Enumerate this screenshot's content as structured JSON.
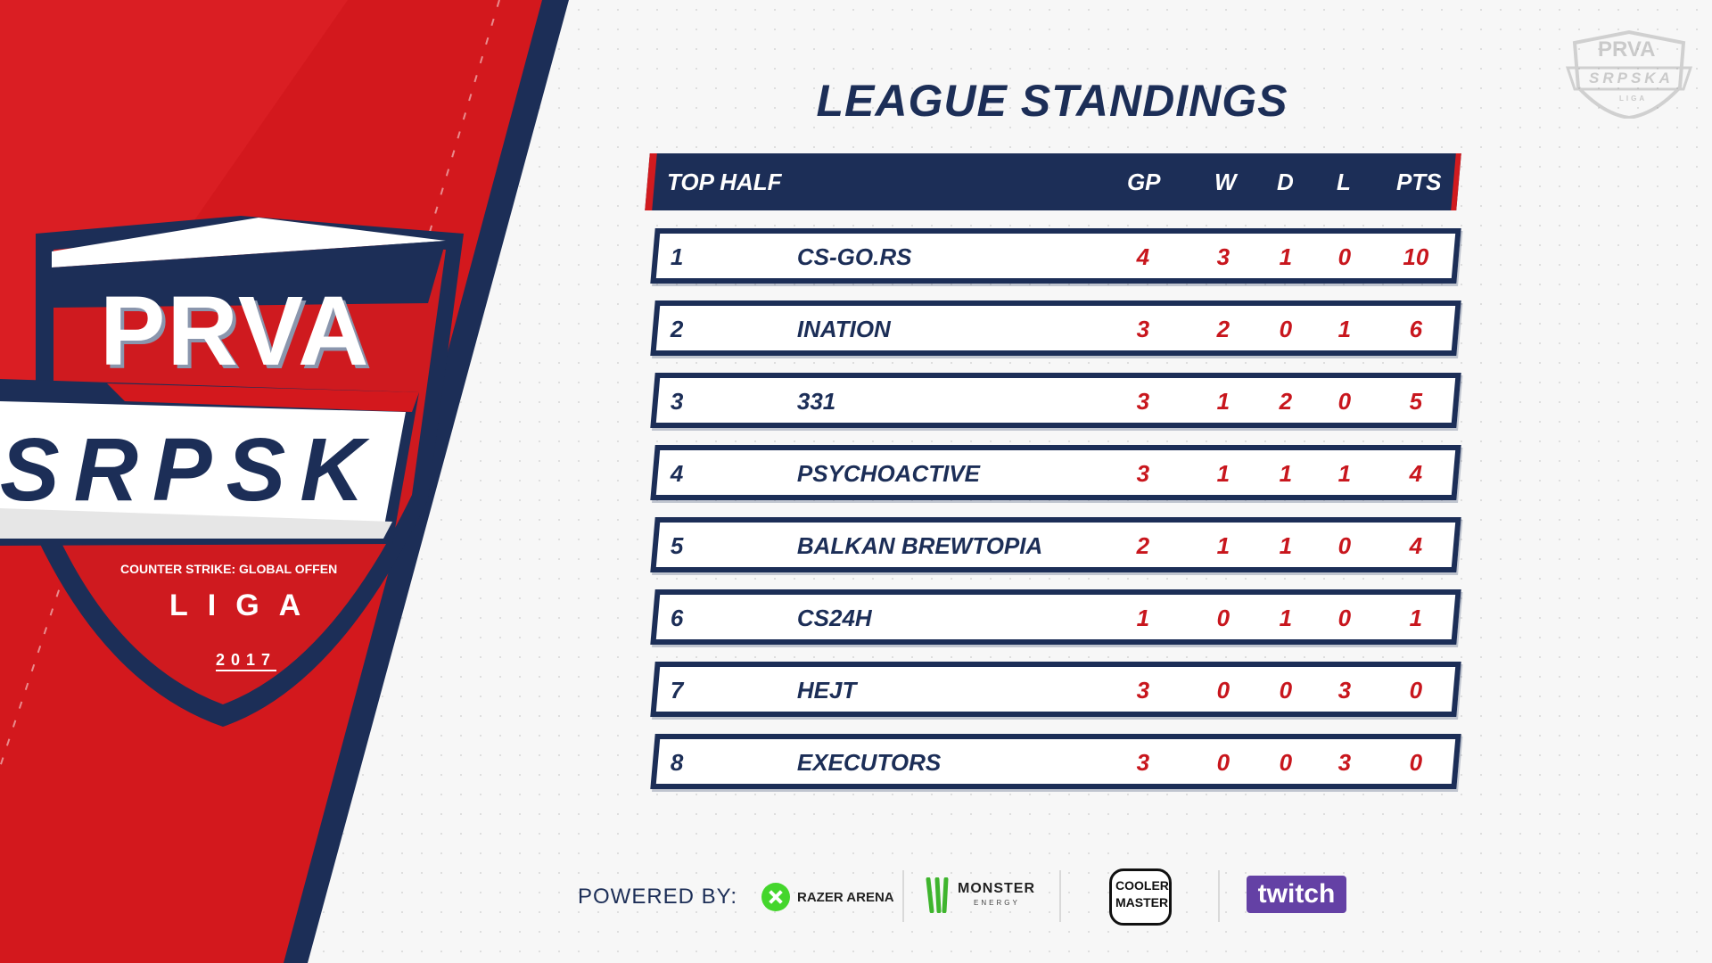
{
  "logo": {
    "line1": "PRVA",
    "line2": "SRPSK",
    "subtitle": "COUNTER STRIKE: GLOBAL OFFEN",
    "liga": "LIGA",
    "year": "2017"
  },
  "corner_logo": {
    "line1": "PRVA",
    "line2": "SRPSKA",
    "line3": "LIGA"
  },
  "title": "LEAGUE STANDINGS",
  "table": {
    "headers": {
      "group": "TOP HALF",
      "gp": "GP",
      "w": "W",
      "d": "D",
      "l": "L",
      "pts": "PTS"
    },
    "rows": [
      {
        "rank": "1",
        "team": "CS-GO.RS",
        "gp": "4",
        "w": "3",
        "d": "1",
        "l": "0",
        "pts": "10"
      },
      {
        "rank": "2",
        "team": "INATION",
        "gp": "3",
        "w": "2",
        "d": "0",
        "l": "1",
        "pts": "6"
      },
      {
        "rank": "3",
        "team": "331",
        "gp": "3",
        "w": "1",
        "d": "2",
        "l": "0",
        "pts": "5"
      },
      {
        "rank": "4",
        "team": "PSYCHOACTIVE",
        "gp": "3",
        "w": "1",
        "d": "1",
        "l": "1",
        "pts": "4"
      },
      {
        "rank": "5",
        "team": "BALKAN BREWTOPIA",
        "gp": "2",
        "w": "1",
        "d": "1",
        "l": "0",
        "pts": "4"
      },
      {
        "rank": "6",
        "team": "CS24H",
        "gp": "1",
        "w": "0",
        "d": "1",
        "l": "0",
        "pts": "1"
      },
      {
        "rank": "7",
        "team": "HEJT",
        "gp": "3",
        "w": "0",
        "d": "0",
        "l": "3",
        "pts": "0"
      },
      {
        "rank": "8",
        "team": "EXECUTORS",
        "gp": "3",
        "w": "0",
        "d": "0",
        "l": "3",
        "pts": "0"
      }
    ]
  },
  "footer": {
    "powered_by": "POWERED BY:",
    "sponsors": {
      "razer": "RAZER ARENA",
      "monster": "MONSTER",
      "monster_sub": "ENERGY",
      "cooler_top": "COOLER",
      "cooler_bottom": "MASTER",
      "twitch": "twitch"
    }
  },
  "colors": {
    "navy": "#1c2e57",
    "red": "#d11b1f",
    "number_red": "#c8161d",
    "twitch_purple": "#6441a5",
    "razer_green": "#44d62c"
  }
}
